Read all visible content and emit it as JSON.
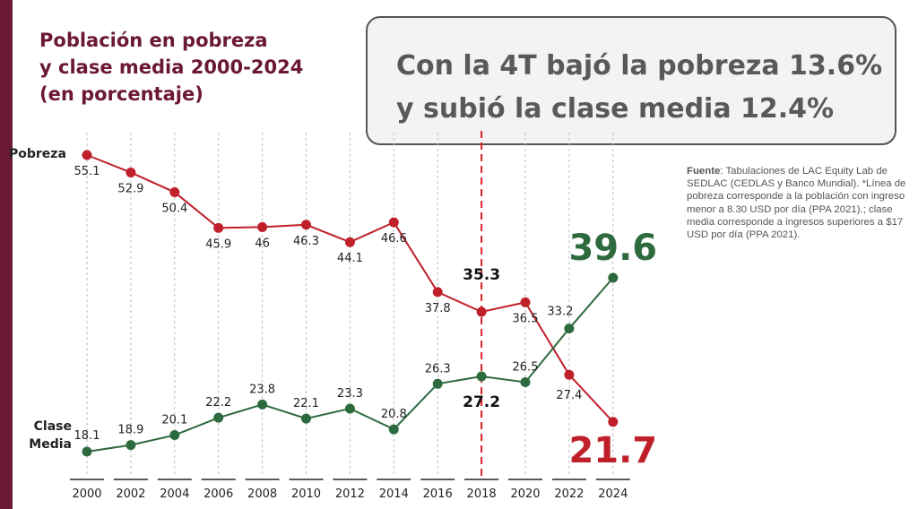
{
  "title_lines": [
    "Población en pobreza",
    "y clase media 2000-2024",
    "(en porcentaje)"
  ],
  "headline_lines": [
    "Con la 4T bajó la pobreza 13.6%",
    "y subió la clase media 12.4%"
  ],
  "source": {
    "label": "Fuente",
    "text": ": Tabulaciones de LAC Equity Lab de SEDLAC (CEDLAS y Banco Mundial). *Línea de pobreza corresponde a la población con ingreso menor a 8.30 USD por día (PPA 2021).; clase media corresponde a ingresos superiores a $17 USD por día (PPA 2021)."
  },
  "series_labels": {
    "pobreza": "Pobreza",
    "clase_media_line1": "Clase",
    "clase_media_line2": "Media"
  },
  "colors": {
    "pobreza": "#c0202a",
    "clase_media": "#2d6a3e",
    "brand": "#6b1833",
    "marker_line": "#e0202a"
  },
  "chart_data": {
    "type": "line",
    "x": [
      "2000",
      "2002",
      "2004",
      "2006",
      "2008",
      "2010",
      "2012",
      "2014",
      "2016",
      "2018",
      "2020",
      "2022",
      "2024"
    ],
    "series": [
      {
        "name": "Pobreza",
        "values": [
          55.1,
          52.9,
          50.4,
          45.9,
          46,
          46.3,
          44.1,
          46.6,
          37.8,
          35.3,
          36.5,
          27.4,
          21.7
        ]
      },
      {
        "name": "Clase Media",
        "values": [
          18.1,
          18.9,
          20.1,
          22.2,
          23.8,
          22.1,
          23.3,
          20.8,
          26.3,
          27.2,
          26.5,
          33.2,
          39.6
        ]
      }
    ],
    "value_labels": {
      "pobreza": [
        "55.1",
        "52.9",
        "50.4",
        "45.9",
        "46",
        "46.3",
        "44.1",
        "46.6",
        "37.8",
        "35.3",
        "36.5",
        "27.4",
        "21.7"
      ],
      "clase_media": [
        "18.1",
        "18.9",
        "20.1",
        "22.2",
        "23.8",
        "22.1",
        "23.3",
        "20.8",
        "26.3",
        "27.2",
        "26.5",
        "33.2",
        "39.6"
      ]
    },
    "vertical_marker_x": "2018",
    "grid": "vertical dashed",
    "ylim": [
      18,
      55.5
    ]
  }
}
